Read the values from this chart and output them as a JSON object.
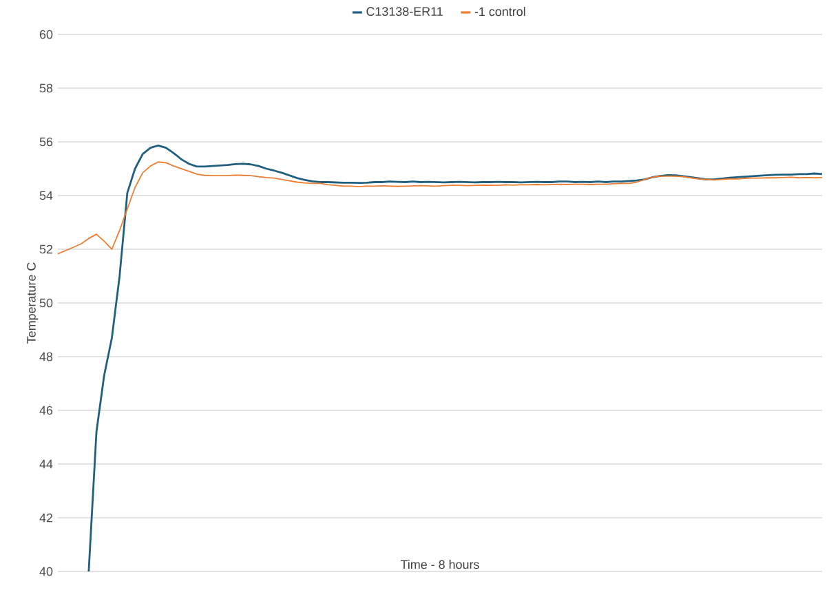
{
  "chart_data": {
    "type": "line",
    "xlabel": "Time - 8 hours",
    "ylabel": "Temperature C",
    "categories": [
      null,
      null,
      null,
      null,
      null,
      null,
      null,
      null,
      null,
      null,
      null,
      null,
      null,
      null,
      null,
      null,
      null,
      null,
      null,
      null,
      null,
      null,
      null,
      null,
      null,
      null,
      null,
      null,
      null,
      null,
      null,
      null,
      null,
      null,
      null,
      null,
      null,
      null,
      null,
      null,
      null,
      null,
      null,
      null,
      null,
      null,
      null,
      null,
      null,
      null,
      null,
      null,
      null,
      null,
      null,
      null,
      null,
      null,
      null,
      null,
      null,
      null,
      null,
      null,
      null,
      null,
      null,
      null,
      null,
      null,
      null,
      null,
      null,
      null,
      null,
      null,
      null,
      null,
      null,
      null,
      null,
      null,
      null,
      null,
      null,
      null,
      null,
      null,
      null,
      null,
      null,
      null,
      null,
      null,
      null,
      null,
      null,
      null,
      null,
      null
    ],
    "series": [
      {
        "name": "C13138-ER11",
        "color": "#215f7e",
        "values": [
          null,
          null,
          null,
          null,
          40,
          45.2,
          47.3,
          48.7,
          51.0,
          54.1,
          55.0,
          55.55,
          55.78,
          55.86,
          55.78,
          55.58,
          55.35,
          55.18,
          55.08,
          55.08,
          55.1,
          55.12,
          55.14,
          55.17,
          55.18,
          55.16,
          55.1,
          55.0,
          54.93,
          54.85,
          54.75,
          54.65,
          54.58,
          54.53,
          54.5,
          54.5,
          54.49,
          54.48,
          54.48,
          54.47,
          54.48,
          54.5,
          54.5,
          54.52,
          54.51,
          54.5,
          54.52,
          54.5,
          54.51,
          54.5,
          54.49,
          54.5,
          54.51,
          54.5,
          54.49,
          54.5,
          54.5,
          54.51,
          54.5,
          54.5,
          54.49,
          54.5,
          54.51,
          54.5,
          54.5,
          54.52,
          54.52,
          54.5,
          54.51,
          54.5,
          54.52,
          54.5,
          54.52,
          54.52,
          54.54,
          54.56,
          54.6,
          54.68,
          54.73,
          54.76,
          54.75,
          54.72,
          54.68,
          54.64,
          54.6,
          54.6,
          54.63,
          54.66,
          54.68,
          54.7,
          54.72,
          54.74,
          54.76,
          54.77,
          54.78,
          54.78,
          54.8,
          54.8,
          54.82,
          54.8
        ]
      },
      {
        "name": "-1 control",
        "color": "#ed7d31",
        "values": [
          51.83,
          51.95,
          52.07,
          52.2,
          52.4,
          52.56,
          52.3,
          52.0,
          52.7,
          53.5,
          54.3,
          54.85,
          55.1,
          55.25,
          55.22,
          55.1,
          55.0,
          54.9,
          54.8,
          54.75,
          54.74,
          54.74,
          54.74,
          54.76,
          54.75,
          54.74,
          54.7,
          54.67,
          54.65,
          54.6,
          54.55,
          54.5,
          54.47,
          54.45,
          54.45,
          54.4,
          54.38,
          54.35,
          54.35,
          54.33,
          54.35,
          54.35,
          54.36,
          54.35,
          54.34,
          54.35,
          54.36,
          54.37,
          54.36,
          54.35,
          54.37,
          54.38,
          54.38,
          54.37,
          54.38,
          54.39,
          54.38,
          54.38,
          54.4,
          54.39,
          54.4,
          54.4,
          54.41,
          54.4,
          54.41,
          54.42,
          54.41,
          54.42,
          54.42,
          54.41,
          54.42,
          54.42,
          54.44,
          54.45,
          54.45,
          54.5,
          54.6,
          54.68,
          54.72,
          54.72,
          54.72,
          54.7,
          54.66,
          54.62,
          54.6,
          54.58,
          54.6,
          54.62,
          54.62,
          54.64,
          54.65,
          54.65,
          54.66,
          54.66,
          54.67,
          54.68,
          54.66,
          54.67,
          54.66,
          54.67
        ]
      }
    ],
    "ylim": [
      40,
      60
    ],
    "yticks": [
      40,
      42,
      44,
      46,
      48,
      50,
      52,
      54,
      56,
      58,
      60
    ],
    "grid": "y",
    "legend": "top"
  }
}
